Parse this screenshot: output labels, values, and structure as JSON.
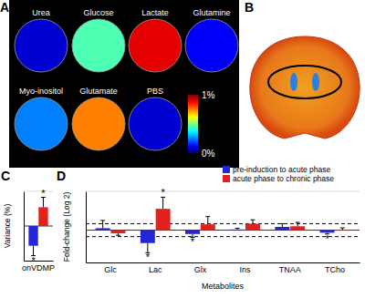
{
  "figure": {
    "panel_labels": [
      "A",
      "B",
      "C",
      "D"
    ],
    "phantoms": [
      {
        "label": "Urea",
        "value": 0.08
      },
      {
        "label": "Glucose",
        "value": 0.45
      },
      {
        "label": "Lactate",
        "value": 0.9
      },
      {
        "label": "Glutamine",
        "value": 0.12
      },
      {
        "label": "Myo-inositol",
        "value": 0.25
      },
      {
        "label": "Glutamate",
        "value": 0.75
      },
      {
        "label": "PBS",
        "value": 0.08
      }
    ],
    "colorbar": {
      "range": [
        0,
        1
      ],
      "ticks": [
        {
          "value": 1,
          "label": "1%"
        },
        {
          "value": 0,
          "label": "0%"
        }
      ]
    }
  },
  "chart_data": [
    {
      "type": "bar",
      "y_label": "Variance (%)",
      "categories": [
        "onVDMP"
      ],
      "series": [
        {
          "color": "#2626d9",
          "values": [
            -20
          ],
          "errors": [
            10
          ]
        },
        {
          "color": "#e3211c",
          "values": [
            19
          ],
          "errors": [
            10
          ]
        }
      ],
      "ylim": [
        -35,
        35
      ],
      "tick_labels": "x",
      "annotations": [
        {
          "text": "*",
          "category": "onVDMP",
          "series": 0
        },
        {
          "text": "*",
          "category": "onVDMP",
          "series": 1
        }
      ]
    },
    {
      "type": "bar",
      "x_label": "Metabolites",
      "y_label": "Fold-change (Log 2)",
      "categories": [
        "Glc",
        "Lac",
        "Glx",
        "Ins",
        "TNAA",
        "TCho"
      ],
      "series": [
        {
          "name": "pre-induction to acute phase",
          "color": "#2626d9",
          "values": [
            0.3,
            -2,
            -0.6,
            0.1,
            0.5,
            -0.4
          ],
          "errors": [
            1.2,
            1.5,
            0.5,
            0.2,
            0.5,
            0.2
          ]
        },
        {
          "name": "acute phase to chronic phase",
          "color": "#e3211c",
          "values": [
            -0.5,
            3.3,
            0.9,
            1,
            0.6,
            0.05
          ],
          "errors": [
            0.3,
            1.8,
            1.2,
            0.6,
            0.6,
            0.3
          ]
        }
      ],
      "ylim": [
        -5,
        6
      ],
      "reference_lines": [
        1,
        -1
      ],
      "legend": "top-right",
      "tick_labels": "x",
      "annotations": [
        {
          "text": "*",
          "category": "Lac",
          "series": 0
        },
        {
          "text": "*",
          "category": "Lac",
          "series": 1
        },
        {
          "text": "*",
          "category": "Glx",
          "series": 0
        },
        {
          "text": "*",
          "category": "TCho",
          "series": 0
        }
      ]
    }
  ]
}
